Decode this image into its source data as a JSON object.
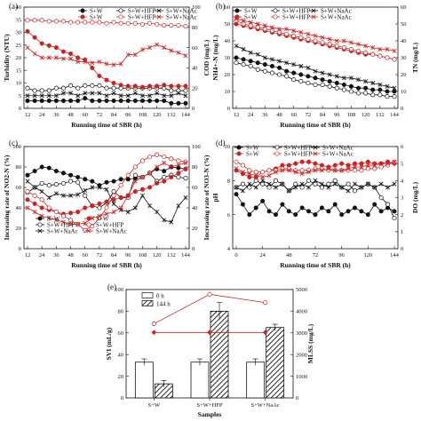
{
  "chart_data": [
    {
      "panel": "(a)",
      "type": "line",
      "x": [
        12,
        18,
        24,
        30,
        36,
        42,
        48,
        54,
        60,
        66,
        72,
        78,
        84,
        90,
        96,
        102,
        108,
        114,
        120,
        126,
        132,
        138,
        144
      ],
      "x_ticks": [
        12,
        24,
        36,
        48,
        60,
        72,
        84,
        96,
        108,
        120,
        132,
        144
      ],
      "xlabel": "Running time of SBR (h)",
      "ylabel": "Turbidity (NTU)",
      "ylabel_right": "COD (mg/L)",
      "ylim": [
        0,
        40
      ],
      "yticks": [
        0,
        5,
        10,
        15,
        20,
        25,
        30,
        35,
        40
      ],
      "ylim_right": [
        0,
        100
      ],
      "yticks_right": [
        0,
        20,
        40,
        60,
        80,
        100
      ],
      "legend": [
        "S+W",
        "S+W+HFP",
        "S+W+NaAc",
        "S+W",
        "S+W+HFP",
        "S+W+NaAc"
      ],
      "series": [
        {
          "axis": "left",
          "color": "#111111",
          "marker": "filled-circle",
          "values": [
            3,
            3,
            3,
            3,
            3,
            3,
            3,
            3,
            4,
            3,
            3,
            3,
            3,
            3,
            3,
            3,
            3,
            3,
            3,
            3,
            2,
            2,
            2
          ]
        },
        {
          "axis": "left",
          "color": "#111111",
          "marker": "open-circle",
          "values": [
            8,
            7,
            7,
            7,
            8,
            8,
            9,
            8,
            9,
            9,
            9,
            8,
            8,
            8,
            8,
            8,
            8,
            8,
            8,
            8,
            7,
            7,
            7
          ]
        },
        {
          "axis": "left",
          "color": "#111111",
          "marker": "x",
          "values": [
            5,
            5,
            5,
            5,
            5,
            6,
            6,
            5,
            6,
            6,
            6,
            5,
            6,
            5,
            5,
            6,
            5,
            5,
            6,
            5,
            5,
            6,
            5
          ]
        },
        {
          "axis": "right",
          "color": "#cc2222",
          "marker": "filled-circle",
          "values": [
            76,
            70,
            64,
            62,
            60,
            56,
            54,
            50,
            48,
            40,
            32,
            28,
            25,
            23,
            22,
            22,
            21,
            22,
            22,
            23,
            22,
            22,
            22
          ]
        },
        {
          "axis": "right",
          "color": "#cc2222",
          "marker": "open-circle",
          "values": [
            87,
            87,
            87,
            86,
            86,
            86,
            85,
            85,
            85,
            85,
            85,
            84,
            85,
            84,
            84,
            84,
            83,
            84,
            83,
            82,
            82,
            82,
            81
          ]
        },
        {
          "axis": "right",
          "color": "#cc2222",
          "marker": "x",
          "values": [
            60,
            54,
            50,
            50,
            50,
            49,
            49,
            46,
            46,
            45,
            46,
            44,
            43,
            44,
            53,
            53,
            58,
            60,
            63,
            60,
            57,
            55,
            52
          ]
        }
      ]
    },
    {
      "panel": "(b)",
      "type": "line",
      "x": [
        12,
        18,
        24,
        30,
        36,
        42,
        48,
        54,
        60,
        66,
        72,
        78,
        84,
        90,
        96,
        102,
        108,
        114,
        120,
        126,
        132,
        138,
        144
      ],
      "x_ticks": [
        12,
        24,
        36,
        48,
        60,
        72,
        84,
        96,
        108,
        120,
        132,
        144
      ],
      "xlabel": "Running time of SBR (h)",
      "ylabel": "NH4+-N (mg/L)",
      "ylabel_right": "TN (mg/L)",
      "ylim": [
        0,
        60
      ],
      "yticks": [
        0,
        10,
        20,
        30,
        40,
        50,
        60
      ],
      "ylim_right": [
        0,
        60
      ],
      "yticks_right": [
        0,
        10,
        20,
        30,
        40,
        50,
        60
      ],
      "legend": [
        "S+W",
        "S+W+HFP",
        "S+W+NaAc",
        "S+W",
        "S+W+HFP",
        "S+W+NaAc"
      ],
      "series": [
        {
          "axis": "left",
          "color": "#111111",
          "marker": "filled-circle",
          "values": [
            30,
            29,
            28,
            27,
            26,
            25,
            24,
            22,
            21,
            20,
            19,
            18,
            17,
            16,
            15,
            14,
            13,
            12,
            12,
            11,
            11,
            10,
            10
          ]
        },
        {
          "axis": "left",
          "color": "#111111",
          "marker": "open-circle",
          "values": [
            27,
            26,
            25,
            23,
            22,
            21,
            20,
            19,
            17,
            16,
            15,
            14,
            14,
            13,
            12,
            11,
            10,
            9,
            9,
            8,
            8,
            7,
            7
          ]
        },
        {
          "axis": "left",
          "color": "#111111",
          "marker": "x",
          "values": [
            37,
            35,
            33,
            32,
            30,
            29,
            28,
            27,
            26,
            25,
            24,
            22,
            21,
            20,
            19,
            18,
            18,
            17,
            16,
            15,
            14,
            13,
            12
          ]
        },
        {
          "axis": "right",
          "color": "#cc2222",
          "marker": "filled-circle",
          "values": [
            50,
            49,
            48,
            47,
            46,
            45,
            44,
            43,
            42,
            41,
            40,
            39,
            38,
            37,
            36,
            35,
            34,
            33,
            32,
            32,
            31,
            30,
            29
          ]
        },
        {
          "axis": "right",
          "color": "#cc2222",
          "marker": "open-circle",
          "values": [
            52,
            50,
            49,
            48,
            47,
            46,
            45,
            44,
            43,
            42,
            41,
            40,
            39,
            38,
            37,
            36,
            35,
            34,
            33,
            32,
            31,
            30,
            29
          ]
        },
        {
          "axis": "right",
          "color": "#cc2222",
          "marker": "x",
          "values": [
            53,
            52,
            51,
            50,
            49,
            48,
            47,
            47,
            46,
            45,
            44,
            43,
            42,
            41,
            40,
            40,
            39,
            38,
            37,
            36,
            35,
            35,
            34
          ]
        }
      ]
    },
    {
      "panel": "(c)",
      "type": "line",
      "x": [
        12,
        18,
        24,
        30,
        36,
        42,
        48,
        54,
        60,
        66,
        72,
        78,
        84,
        90,
        96,
        102,
        108,
        114,
        120,
        126,
        132,
        138,
        144
      ],
      "x_ticks": [
        12,
        24,
        36,
        48,
        60,
        72,
        84,
        96,
        108,
        120,
        132,
        144
      ],
      "xlabel": "Running time of SBR (h)",
      "ylabel": "Increasing rate of NO2-N (%)",
      "ylabel_right": "Increasing rate of NO3-N (%)",
      "ylim": [
        0,
        100
      ],
      "yticks": [
        0,
        20,
        40,
        60,
        80,
        100
      ],
      "ylim_right": [
        0,
        100
      ],
      "yticks_right": [
        0,
        20,
        40,
        60,
        80,
        100
      ],
      "legend": [
        "S+W",
        "S+W",
        "S+W+HFP",
        "S+W+HFP",
        "S+W+NaAc",
        "S+W+NaAc"
      ],
      "series": [
        {
          "axis": "left",
          "color": "#111111",
          "marker": "filled-circle",
          "values": [
            72,
            76,
            80,
            79,
            76,
            74,
            72,
            70,
            68,
            66,
            62,
            65,
            66,
            68,
            68,
            69,
            70,
            74,
            78,
            76,
            80,
            79,
            78
          ]
        },
        {
          "axis": "left",
          "color": "#111111",
          "marker": "open-circle",
          "values": [
            55,
            60,
            64,
            62,
            63,
            64,
            66,
            65,
            52,
            42,
            40,
            45,
            56,
            50,
            50,
            72,
            70,
            74,
            66,
            70,
            72,
            70,
            69
          ]
        },
        {
          "axis": "left",
          "color": "#111111",
          "marker": "x",
          "values": [
            66,
            60,
            56,
            50,
            54,
            52,
            52,
            53,
            57,
            60,
            60,
            58,
            44,
            38,
            36,
            40,
            52,
            42,
            36,
            28,
            26,
            42,
            50
          ]
        },
        {
          "axis": "right",
          "color": "#cc2222",
          "marker": "filled-circle",
          "values": [
            48,
            44,
            40,
            38,
            36,
            34,
            35,
            36,
            40,
            42,
            44,
            46,
            48,
            50,
            52,
            56,
            58,
            60,
            64,
            66,
            70,
            74,
            78
          ]
        },
        {
          "axis": "right",
          "color": "#cc2222",
          "marker": "open-circle",
          "values": [
            56,
            52,
            48,
            40,
            36,
            32,
            28,
            24,
            18,
            22,
            30,
            40,
            52,
            62,
            72,
            80,
            86,
            90,
            92,
            90,
            88,
            86,
            85
          ]
        },
        {
          "axis": "right",
          "color": "#cc2222",
          "marker": "x",
          "values": [
            40,
            36,
            32,
            30,
            28,
            26,
            24,
            24,
            25,
            30,
            32,
            34,
            36,
            40,
            52,
            66,
            70,
            74,
            80,
            84,
            80,
            82,
            84
          ]
        }
      ]
    },
    {
      "panel": "(d)",
      "type": "line",
      "x": [
        0,
        6,
        12,
        18,
        24,
        30,
        36,
        42,
        48,
        54,
        60,
        66,
        72,
        78,
        84,
        90,
        96,
        102,
        108,
        114,
        120,
        126,
        132,
        138,
        144
      ],
      "x_ticks": [
        0,
        24,
        48,
        72,
        96,
        120,
        144
      ],
      "xlabel": "Running time of SBR (h)",
      "ylabel": "pH",
      "ylabel_right": "DO (mg/L)",
      "ylim": [
        4,
        10
      ],
      "yticks": [
        4,
        6,
        8,
        10
      ],
      "ylim_right": [
        0,
        6
      ],
      "yticks_right": [
        0,
        1,
        2,
        3,
        4,
        5,
        6
      ],
      "legend": [
        "S+W",
        "S+W+HFP",
        "S+W+NaAc",
        "S+W",
        "S+W+HFP",
        "S+W+NaAc"
      ],
      "series": [
        {
          "axis": "left",
          "color": "#111111",
          "marker": "filled-circle",
          "values": [
            7.2,
            6.6,
            6.0,
            6.4,
            6.8,
            6.2,
            6.0,
            6.6,
            6.2,
            6.0,
            6.4,
            6.2,
            6.0,
            6.4,
            6.2,
            6.6,
            6.0,
            6.2,
            6.4,
            6.2,
            6.0,
            6.6,
            6.2,
            6.4,
            6.2
          ]
        },
        {
          "axis": "left",
          "color": "#111111",
          "marker": "open-circle",
          "values": [
            7.6,
            7.8,
            7.6,
            8.0,
            7.8,
            7.6,
            8.0,
            7.8,
            7.4,
            7.8,
            7.6,
            8.0,
            7.8,
            7.6,
            7.8,
            8.0,
            7.6,
            7.8,
            7.4,
            7.6,
            7.8,
            7.6,
            7.0,
            6.6,
            5.8
          ]
        },
        {
          "axis": "left",
          "color": "#111111",
          "marker": "x",
          "values": [
            7.6,
            7.4,
            7.8,
            7.6,
            8.0,
            7.8,
            7.6,
            7.8,
            7.4,
            7.6,
            7.8,
            7.6,
            8.0,
            7.8,
            7.6,
            7.8,
            7.6,
            7.4,
            7.8,
            7.6,
            7.8,
            7.6,
            7.8,
            7.6,
            7.8
          ]
        },
        {
          "axis": "right",
          "color": "#cc2222",
          "marker": "filled-circle",
          "values": [
            4.6,
            4.4,
            4.2,
            4.2,
            4.5,
            4.6,
            4.7,
            4.9,
            4.9,
            5.0,
            5.1,
            5.1,
            5.0,
            4.9,
            4.8,
            4.9,
            5.0,
            4.9,
            5.0,
            5.0,
            5.1,
            5.0,
            5.0,
            5.1,
            5.0
          ]
        },
        {
          "axis": "right",
          "color": "#cc2222",
          "marker": "open-circle",
          "values": [
            5.1,
            4.9,
            4.6,
            4.5,
            4.5,
            4.6,
            4.6,
            4.7,
            4.7,
            4.6,
            4.6,
            4.6,
            4.7,
            4.7,
            4.6,
            4.6,
            4.6,
            4.6,
            4.6,
            4.6,
            4.7,
            4.7,
            4.8,
            4.9,
            5.1
          ]
        },
        {
          "axis": "right",
          "color": "#cc2222",
          "marker": "x",
          "values": [
            4.7,
            4.5,
            4.4,
            4.3,
            4.2,
            4.3,
            4.5,
            4.6,
            4.6,
            4.5,
            4.4,
            4.5,
            4.6,
            4.6,
            4.7,
            4.6,
            4.6,
            4.7,
            4.8,
            4.8,
            4.9,
            4.9,
            5.0,
            5.0,
            5.1
          ]
        }
      ]
    },
    {
      "panel": "(e)",
      "type": "bar",
      "categories": [
        "S+W",
        "S+W+HFP",
        "S+W+NaAc"
      ],
      "xlabel": "Samples",
      "ylabel": "SVI (mL/g)",
      "ylabel_right": "MLSS (mg/L)",
      "ylim": [
        0,
        100
      ],
      "yticks": [
        0,
        20,
        40,
        60,
        80,
        100
      ],
      "ylim_right": [
        0,
        5000
      ],
      "yticks_right": [
        0,
        1000,
        2000,
        3000,
        4000,
        5000
      ],
      "legend": [
        "0 h",
        "144 h"
      ],
      "series": [
        {
          "name": "0 h",
          "axis": "left",
          "kind": "bar",
          "fill": "open",
          "values": [
            33,
            33,
            33
          ],
          "errors": [
            3,
            3,
            3
          ]
        },
        {
          "name": "144 h",
          "axis": "left",
          "kind": "bar",
          "fill": "hatched",
          "values": [
            13,
            80,
            65
          ],
          "errors": [
            3,
            8,
            3
          ]
        },
        {
          "axis": "right",
          "kind": "line",
          "color": "#cc2222",
          "marker": "filled-diamond",
          "values": [
            3020,
            3020,
            3020
          ]
        },
        {
          "axis": "right",
          "kind": "line",
          "color": "#cc2222",
          "marker": "open-circle",
          "values": [
            3420,
            4780,
            4400
          ]
        }
      ]
    }
  ]
}
